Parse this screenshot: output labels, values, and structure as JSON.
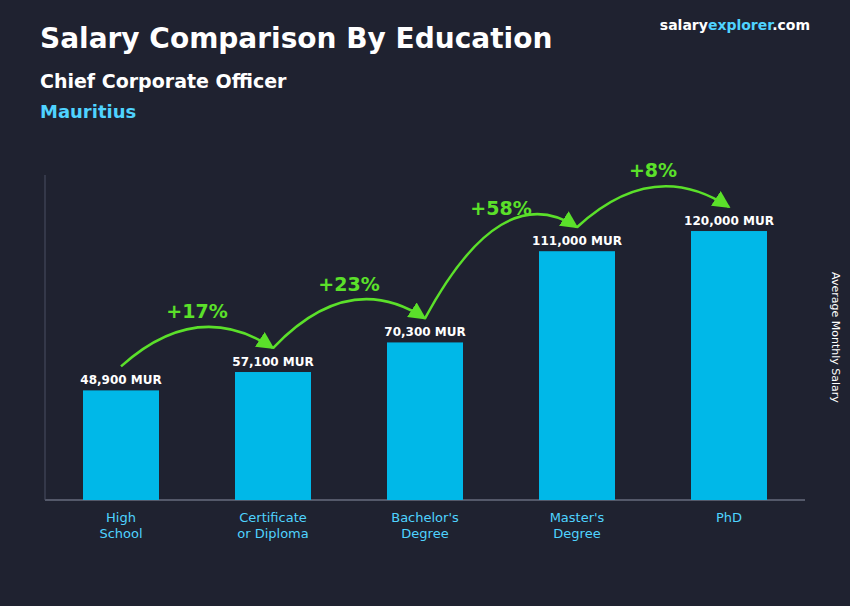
{
  "chart_data": {
    "type": "bar",
    "title": "Salary Comparison By Education",
    "subtitle": "Chief Corporate Officer",
    "location": "Mauritius",
    "source_parts": [
      "salary",
      "explorer",
      ".com"
    ],
    "y_label": "Average Monthly Salary",
    "categories": [
      "High\nSchool",
      "Certificate\nor Diploma",
      "Bachelor's\nDegree",
      "Master's\nDegree",
      "PhD"
    ],
    "values": [
      48900,
      57100,
      70300,
      111000,
      120000
    ],
    "value_labels": [
      "48,900 MUR",
      "57,100 MUR",
      "70,300 MUR",
      "111,000 MUR",
      "120,000 MUR"
    ],
    "annotations": [
      "+17%",
      "+23%",
      "+58%",
      "+8%"
    ],
    "color": "#00b8e8",
    "ylim": [
      0,
      145000
    ],
    "data_labels": true,
    "tick_labels": "x",
    "grid": false
  }
}
